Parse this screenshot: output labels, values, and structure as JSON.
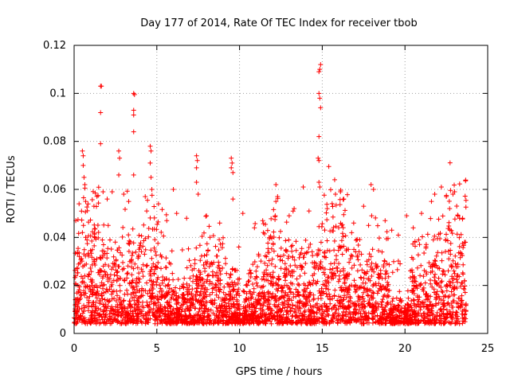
{
  "chart_data": {
    "type": "scatter",
    "title": "Day 177 of 2014, Rate Of TEC Index for receiver tbob",
    "xlabel": "GPS time / hours",
    "ylabel": "ROTI / TECUs",
    "xlim": [
      0,
      25
    ],
    "ylim": [
      0,
      0.12
    ],
    "grid": true,
    "marker": "+",
    "color": "#ff0000",
    "xticks": [
      {
        "value": 0,
        "label": "0"
      },
      {
        "value": 5,
        "label": "5"
      },
      {
        "value": 10,
        "label": "10"
      },
      {
        "value": 15,
        "label": "15"
      },
      {
        "value": 20,
        "label": "20"
      },
      {
        "value": 25,
        "label": "25"
      }
    ],
    "yticks": [
      {
        "value": 0,
        "label": "0"
      },
      {
        "value": 0.02,
        "label": "0.02"
      },
      {
        "value": 0.04,
        "label": "0.04"
      },
      {
        "value": 0.06,
        "label": "0.06"
      },
      {
        "value": 0.08,
        "label": "0.08"
      },
      {
        "value": 0.1,
        "label": "0.1"
      },
      {
        "value": 0.12,
        "label": "0.12"
      }
    ],
    "series": [
      {
        "name": "ROTI",
        "points": [
          [
            1.6,
            0.103
          ],
          [
            1.65,
            0.103
          ],
          [
            3.6,
            0.1
          ],
          [
            3.65,
            0.0995
          ],
          [
            1.6,
            0.092
          ],
          [
            3.6,
            0.093
          ],
          [
            3.6,
            0.091
          ],
          [
            3.6,
            0.084
          ],
          [
            1.6,
            0.079
          ],
          [
            14.9,
            0.112
          ],
          [
            14.85,
            0.11
          ],
          [
            14.8,
            0.109
          ],
          [
            14.8,
            0.1
          ],
          [
            14.85,
            0.098
          ],
          [
            14.9,
            0.094
          ],
          [
            14.8,
            0.082
          ],
          [
            14.75,
            0.073
          ],
          [
            14.8,
            0.072
          ],
          [
            0.5,
            0.076
          ],
          [
            0.55,
            0.074
          ],
          [
            2.7,
            0.076
          ],
          [
            2.75,
            0.073
          ],
          [
            4.6,
            0.078
          ],
          [
            4.65,
            0.076
          ],
          [
            4.6,
            0.071
          ],
          [
            7.4,
            0.074
          ],
          [
            7.45,
            0.072
          ],
          [
            7.4,
            0.069
          ],
          [
            9.5,
            0.073
          ],
          [
            9.55,
            0.071
          ],
          [
            9.5,
            0.069
          ],
          [
            9.6,
            0.067
          ],
          [
            0.55,
            0.07
          ],
          [
            0.6,
            0.065
          ],
          [
            0.65,
            0.062
          ],
          [
            2.7,
            0.066
          ],
          [
            3.6,
            0.066
          ],
          [
            4.65,
            0.065
          ],
          [
            7.4,
            0.063
          ],
          [
            15.75,
            0.064
          ],
          [
            14.8,
            0.063
          ],
          [
            12.2,
            0.062
          ],
          [
            17.95,
            0.062
          ],
          [
            13.85,
            0.061
          ],
          [
            14.85,
            0.061
          ],
          [
            6.0,
            0.06
          ],
          [
            22.2,
            0.061
          ],
          [
            23.0,
            0.059
          ],
          [
            22.9,
            0.058
          ],
          [
            1.75,
            0.059
          ],
          [
            2.3,
            0.059
          ],
          [
            3.0,
            0.058
          ],
          [
            4.7,
            0.06
          ],
          [
            18.1,
            0.06
          ],
          [
            12.3,
            0.057
          ],
          [
            15.8,
            0.058
          ],
          [
            16.1,
            0.059
          ],
          [
            21.8,
            0.058
          ],
          [
            22.5,
            0.057
          ],
          [
            0.7,
            0.055
          ],
          [
            7.5,
            0.058
          ],
          [
            9.6,
            0.056
          ],
          [
            12.2,
            0.055
          ],
          [
            16.3,
            0.056
          ],
          [
            21.0,
            0.05
          ],
          [
            17.5,
            0.053
          ],
          [
            13.3,
            0.052
          ],
          [
            5.1,
            0.054
          ],
          [
            6.2,
            0.05
          ],
          [
            14.2,
            0.051
          ],
          [
            20.1,
            0.049
          ],
          [
            23.3,
            0.048
          ],
          [
            0.3,
            0.054
          ],
          [
            1.2,
            0.053
          ],
          [
            2.0,
            0.056
          ],
          [
            3.3,
            0.055
          ],
          [
            4.3,
            0.057
          ],
          [
            15.3,
            0.052
          ],
          [
            21.6,
            0.055
          ],
          [
            8.0,
            0.049
          ],
          [
            18.8,
            0.047
          ],
          [
            10.2,
            0.05
          ],
          [
            11.4,
            0.047
          ],
          [
            13.0,
            0.049
          ],
          [
            17.8,
            0.045
          ],
          [
            19.2,
            0.043
          ],
          [
            22.7,
            0.052
          ],
          [
            5.6,
            0.047
          ],
          [
            6.8,
            0.048
          ],
          [
            8.8,
            0.046
          ],
          [
            10.9,
            0.044
          ],
          [
            16.9,
            0.046
          ],
          [
            19.6,
            0.041
          ],
          [
            20.5,
            0.044
          ],
          [
            23.6,
            0.038
          ],
          [
            0.1,
            0.047
          ]
        ]
      }
    ]
  }
}
